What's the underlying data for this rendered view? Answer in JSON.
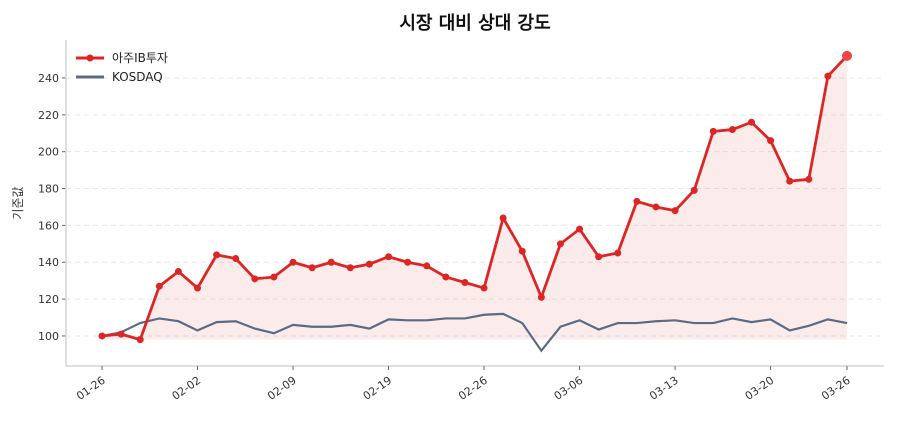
{
  "chart_data": {
    "type": "line",
    "title": "시장 대비 상대 강도",
    "xlabel": "",
    "ylabel": "기준값",
    "ylim": [
      83.7,
      260.6
    ],
    "yticks": [
      100,
      120,
      140,
      160,
      180,
      200,
      220,
      240
    ],
    "grid": "horizontal dashed",
    "legend_placement": "top-left",
    "x": [
      "01-26",
      "01-27",
      "01-28",
      "01-29",
      "01-30",
      "02-02",
      "02-03",
      "02-04",
      "02-05",
      "02-06",
      "02-09",
      "02-10",
      "02-11",
      "02-12",
      "02-13",
      "02-19",
      "02-20",
      "02-23",
      "02-24",
      "02-25",
      "02-26",
      "02-27",
      "03-03",
      "03-04",
      "03-05",
      "03-06",
      "03-09",
      "03-10",
      "03-11",
      "03-12",
      "03-13",
      "03-16",
      "03-17",
      "03-18",
      "03-19",
      "03-20",
      "03-23",
      "03-24",
      "03-25",
      "03-26"
    ],
    "xticks": [
      "01-26",
      "02-02",
      "02-09",
      "02-19",
      "02-26",
      "03-06",
      "03-13",
      "03-20",
      "03-26"
    ],
    "series": [
      {
        "name": "아주IB투자",
        "color": "#dc2626",
        "values": [
          100,
          101,
          98,
          127,
          135,
          126,
          144,
          142,
          131,
          132,
          140,
          137,
          140,
          137,
          139,
          143,
          140,
          138,
          132,
          129,
          126,
          164,
          146,
          121,
          150,
          158,
          143,
          145,
          173,
          170,
          168,
          179,
          211,
          212,
          216,
          206,
          184,
          185,
          241,
          252
        ]
      },
      {
        "name": "KOSDAQ",
        "color": "#5a6b85",
        "values": [
          100,
          102,
          107,
          109.5,
          108,
          103,
          107.5,
          108,
          104,
          101.5,
          106,
          105,
          105,
          106,
          104,
          109,
          108.5,
          108.5,
          109.5,
          109.5,
          111.5,
          112,
          107,
          92,
          105,
          108.5,
          103.5,
          107,
          107,
          108,
          108.5,
          107,
          107,
          109.5,
          107.5,
          109,
          103,
          105.5,
          109,
          107
        ]
      }
    ]
  }
}
